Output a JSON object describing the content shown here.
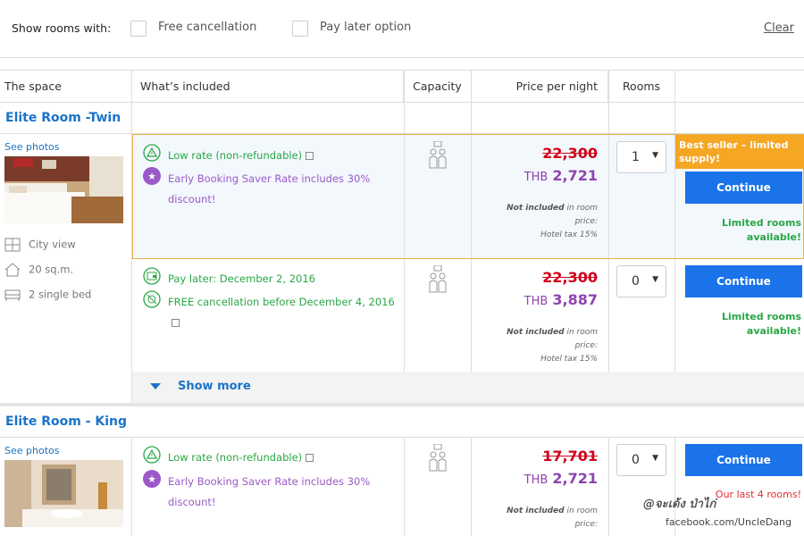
{
  "filters": {
    "label": "Show rooms with:",
    "free_cancellation": "Free cancellation",
    "pay_later": "Pay later option",
    "clear": "Clear"
  },
  "columns": {
    "space": "The space",
    "included": "What’s included",
    "capacity": "Capacity",
    "price": "Price per night",
    "rooms": "Rooms"
  },
  "rooms": [
    {
      "name": "Elite Room -Twin",
      "see_photos": "See photos",
      "features": {
        "view": "City view",
        "size": "20 sq.m.",
        "bed": "2 single bed"
      },
      "offers": [
        {
          "incl1": "Low rate (non-refundable)",
          "incl2": "Early Booking Saver Rate includes 30%",
          "incl2b": "discount!",
          "old_price": "22,300",
          "currency": "THB",
          "price": "2,721",
          "note_bold": "Not included",
          "note_rest": " in room",
          "note2": "price:",
          "note3": "Hotel tax 15%",
          "rooms_value": "1",
          "badge": "Best seller – limited supply!",
          "button": "Continue",
          "status1": "Limited rooms",
          "status2": "available!"
        },
        {
          "incl1": "Pay later: December 2, 2016",
          "incl2": "FREE cancellation before December 4, 2016",
          "old_price": "22,300",
          "currency": "THB",
          "price": "3,887",
          "note_bold": "Not included",
          "note_rest": " in room",
          "note2": "price:",
          "note3": "Hotel tax 15%",
          "rooms_value": "0",
          "button": "Continue",
          "status1": "Limited rooms",
          "status2": "available!"
        }
      ],
      "show_more": "Show more"
    },
    {
      "name": "Elite Room - King",
      "see_photos": "See photos",
      "offers": [
        {
          "incl1": "Low rate (non-refundable)",
          "incl2": "Early Booking Saver Rate includes 30%",
          "incl2b": "discount!",
          "old_price": "17,701",
          "currency": "THB",
          "price": "2,721",
          "note_bold": "Not included",
          "note_rest": " in room",
          "note2": "price:",
          "rooms_value": "0",
          "button": "Continue",
          "status1": "Our last 4 rooms!"
        }
      ]
    }
  ],
  "watermark": {
    "line1": "@จะเด้ง ป่าไก่",
    "line2": "facebook.com/UncleDang"
  },
  "colors": {
    "link": "#1a73c8",
    "button": "#1a73e8",
    "strike": "#d0021b",
    "price": "#8e44ad",
    "green": "#29a745",
    "badge": "#f5a623"
  }
}
